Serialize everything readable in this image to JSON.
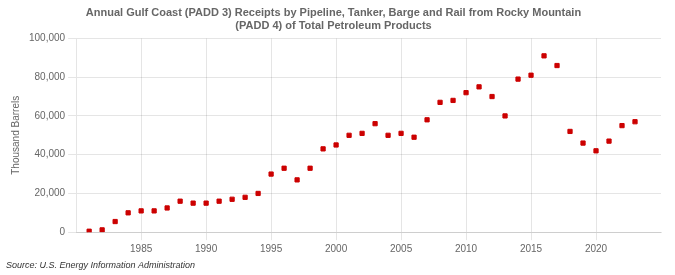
{
  "chart_data": {
    "type": "scatter",
    "title": "Annual Gulf Coast (PADD 3) Receipts by Pipeline, Tanker, Barge and Rail from Rocky Mountain\n(PADD 4) of Total Petroleum Products",
    "ylabel": "Thousand Barrels",
    "source": "Source: U.S. Energy Information Administration",
    "color": "#cc0000",
    "marker": "square",
    "x": [
      1981,
      1982,
      1983,
      1984,
      1985,
      1986,
      1987,
      1988,
      1989,
      1990,
      1991,
      1992,
      1993,
      1994,
      1995,
      1996,
      1997,
      1998,
      1999,
      2000,
      2001,
      2002,
      2003,
      2004,
      2005,
      2006,
      2007,
      2008,
      2009,
      2010,
      2011,
      2012,
      2013,
      2014,
      2015,
      2016,
      2017,
      2018,
      2019,
      2020,
      2021,
      2022,
      2023
    ],
    "values": [
      500,
      1200,
      5500,
      10000,
      11000,
      11000,
      12500,
      16000,
      15000,
      15000,
      16000,
      17000,
      18000,
      20000,
      30000,
      33000,
      27000,
      33000,
      43000,
      45000,
      50000,
      51000,
      56000,
      50000,
      51000,
      49000,
      58000,
      67000,
      68000,
      72000,
      75000,
      70000,
      60000,
      79000,
      81000,
      91000,
      86000,
      52000,
      46000,
      42000,
      47000,
      55000,
      57000
    ],
    "xlim": [
      1980,
      2025
    ],
    "xticks": [
      1985,
      1990,
      1995,
      2000,
      2005,
      2010,
      2015,
      2020
    ],
    "ylim": [
      0,
      100000
    ],
    "yticks": [
      0,
      {
        "value": 20000,
        "label": "20,000"
      },
      {
        "value": 40000,
        "label": "40,000"
      },
      {
        "value": 60000,
        "label": "60,000"
      },
      {
        "value": 80000,
        "label": "80,000"
      },
      {
        "value": 100000,
        "label": "100,000"
      }
    ],
    "grid": true
  }
}
